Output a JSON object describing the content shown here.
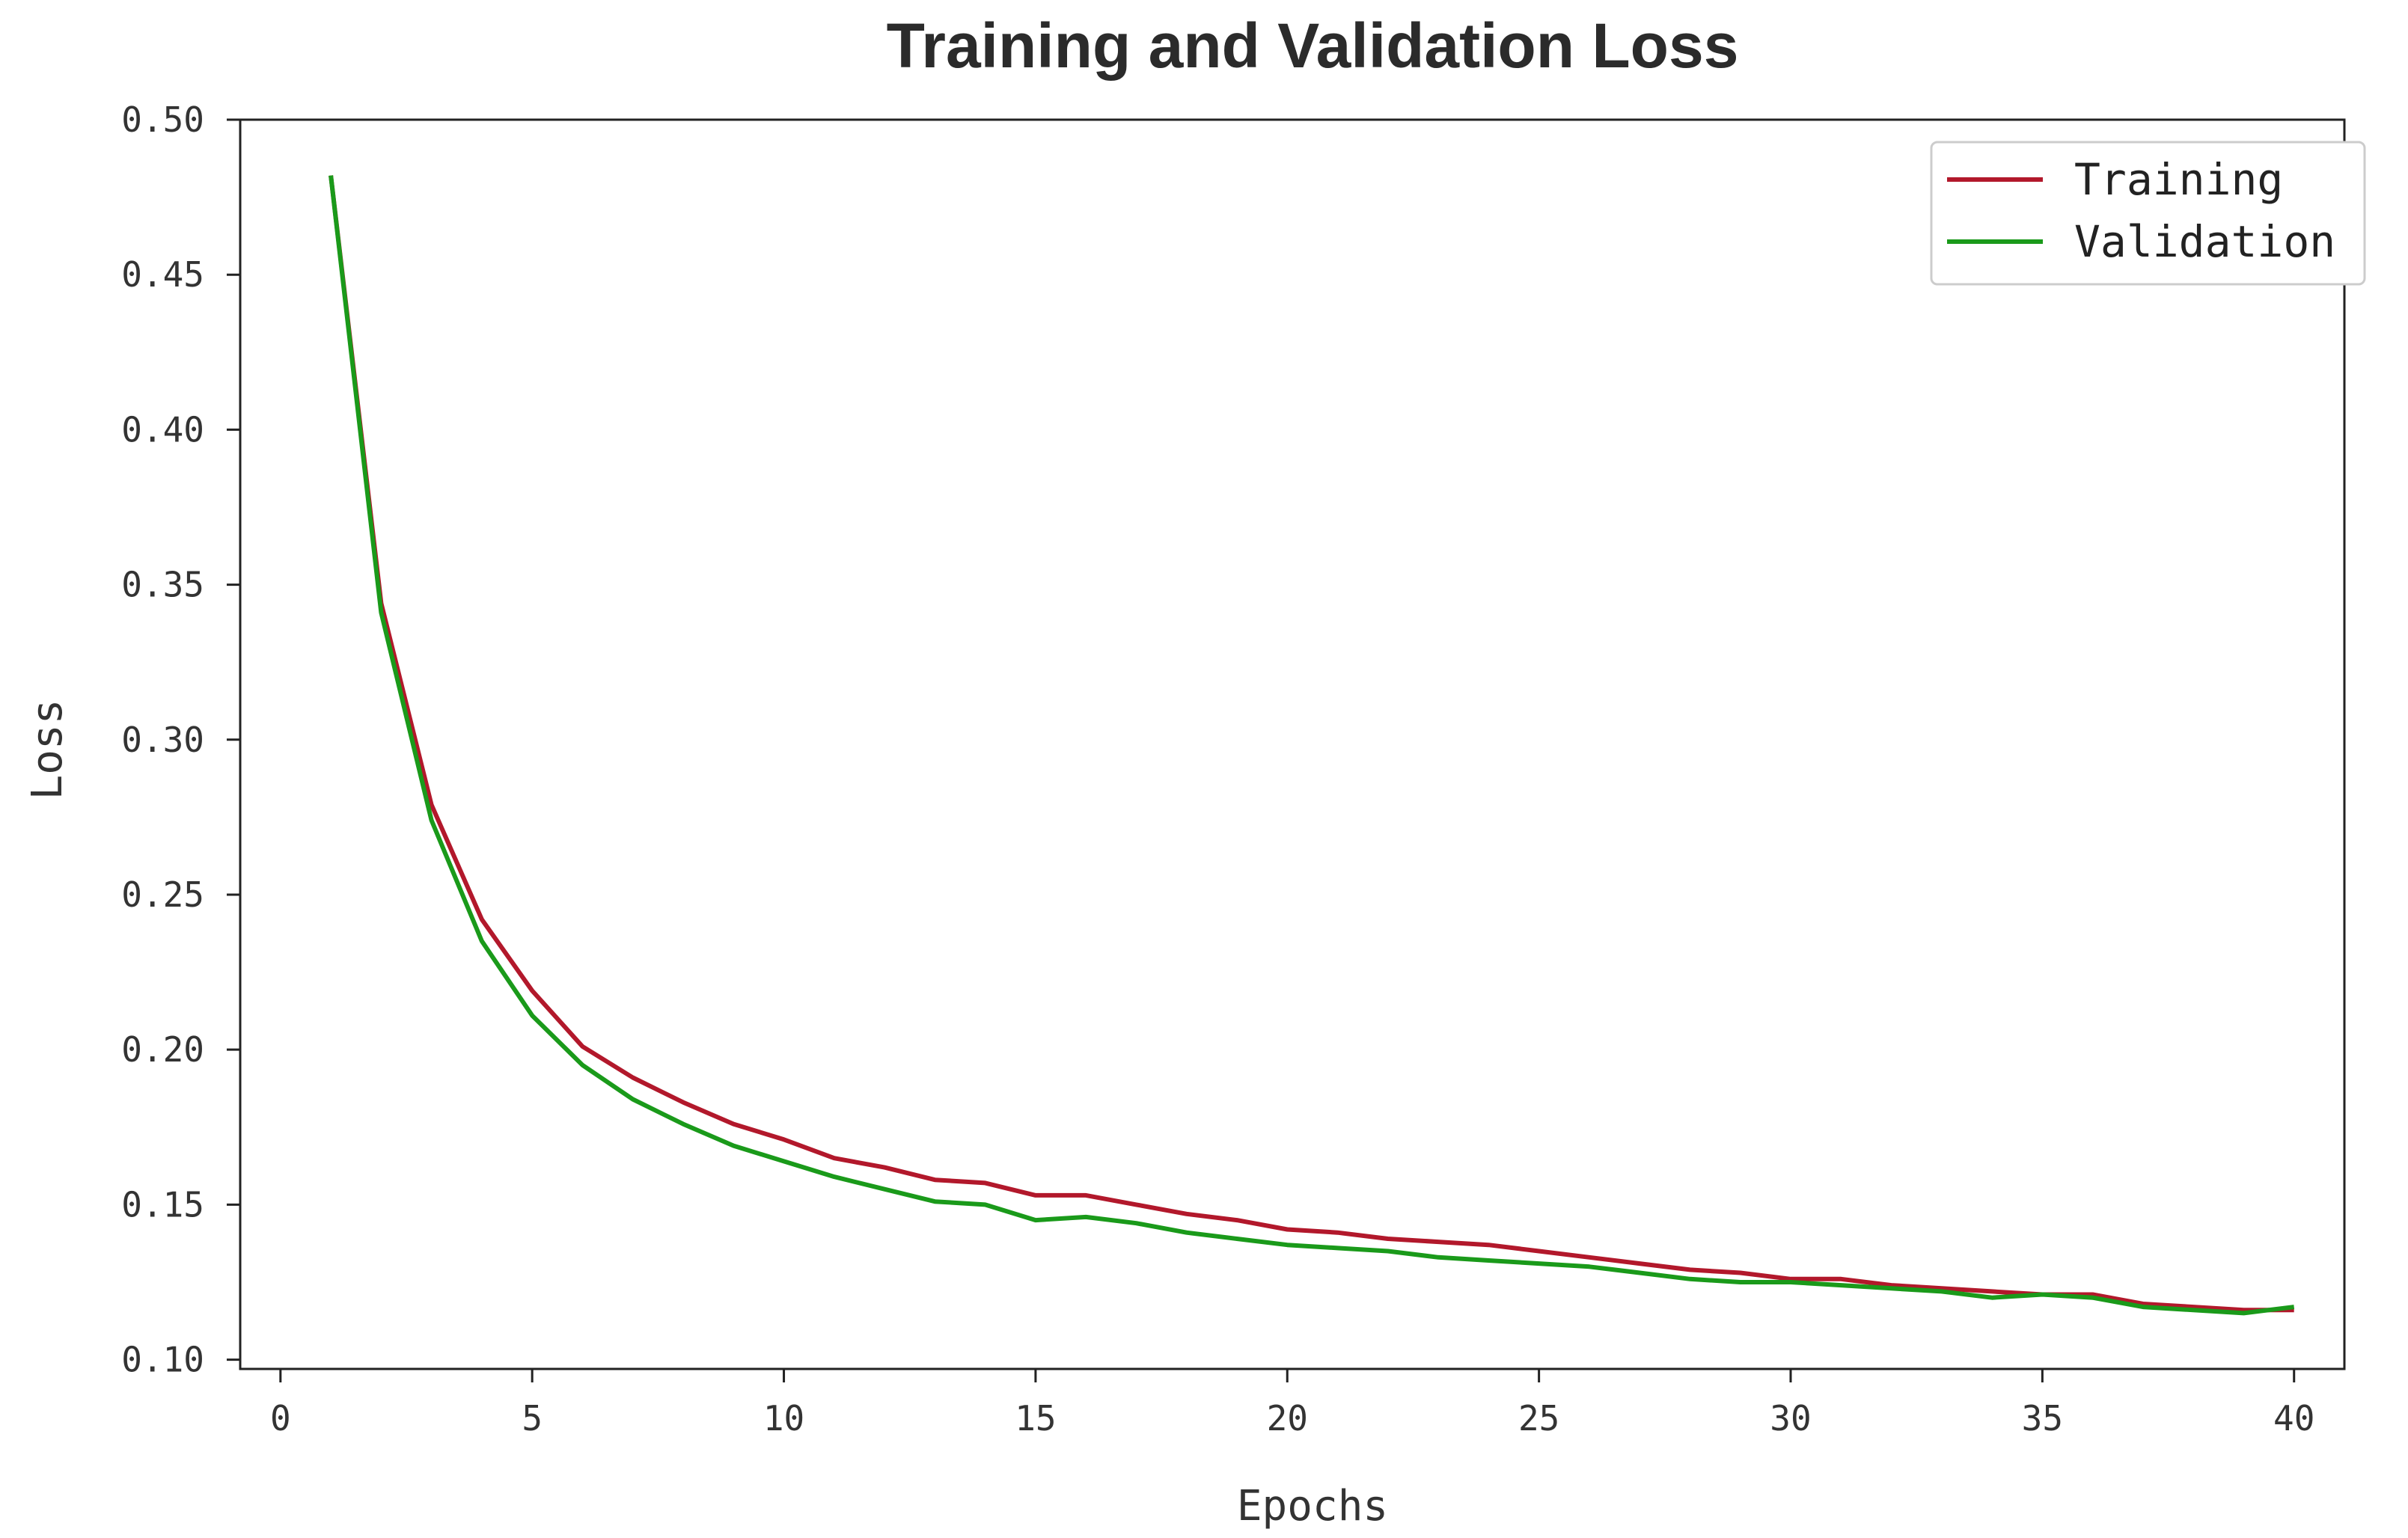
{
  "chart_data": {
    "type": "line",
    "title": "Training and Validation Loss",
    "xlabel": "Epochs",
    "ylabel": "Loss",
    "xlim": [
      -0.8,
      41
    ],
    "ylim": [
      0.097,
      0.5
    ],
    "xticks": [
      0,
      5,
      10,
      15,
      20,
      25,
      30,
      35,
      40
    ],
    "xtick_labels": [
      "0",
      "5",
      "10",
      "15",
      "20",
      "25",
      "30",
      "35",
      "40"
    ],
    "yticks": [
      0.1,
      0.15,
      0.2,
      0.25,
      0.3,
      0.35,
      0.4,
      0.45,
      0.5
    ],
    "ytick_labels": [
      "0.10",
      "0.15",
      "0.20",
      "0.25",
      "0.30",
      "0.35",
      "0.40",
      "0.45",
      "0.50"
    ],
    "grid": false,
    "legend_position": "top-right",
    "x": [
      1,
      2,
      3,
      4,
      5,
      6,
      7,
      8,
      9,
      10,
      11,
      12,
      13,
      14,
      15,
      16,
      17,
      18,
      19,
      20,
      21,
      22,
      23,
      24,
      25,
      26,
      27,
      28,
      29,
      30,
      31,
      32,
      33,
      34,
      35,
      36,
      37,
      38,
      39,
      40
    ],
    "series": [
      {
        "name": "Training",
        "color": "#b2182b",
        "values": [
          0.482,
          0.344,
          0.279,
          0.242,
          0.219,
          0.201,
          0.191,
          0.183,
          0.176,
          0.171,
          0.165,
          0.162,
          0.158,
          0.157,
          0.153,
          0.153,
          0.15,
          0.147,
          0.145,
          0.142,
          0.141,
          0.139,
          0.138,
          0.137,
          0.135,
          0.133,
          0.131,
          0.129,
          0.128,
          0.126,
          0.126,
          0.124,
          0.123,
          0.122,
          0.121,
          0.121,
          0.118,
          0.117,
          0.116,
          0.116
        ]
      },
      {
        "name": "Validation",
        "color": "#1a9a1a",
        "values": [
          0.482,
          0.341,
          0.274,
          0.235,
          0.211,
          0.195,
          0.184,
          0.176,
          0.169,
          0.164,
          0.159,
          0.155,
          0.151,
          0.15,
          0.145,
          0.146,
          0.144,
          0.141,
          0.139,
          0.137,
          0.136,
          0.135,
          0.133,
          0.132,
          0.131,
          0.13,
          0.128,
          0.126,
          0.125,
          0.125,
          0.124,
          0.123,
          0.122,
          0.12,
          0.121,
          0.12,
          0.117,
          0.116,
          0.115,
          0.117
        ]
      }
    ]
  }
}
